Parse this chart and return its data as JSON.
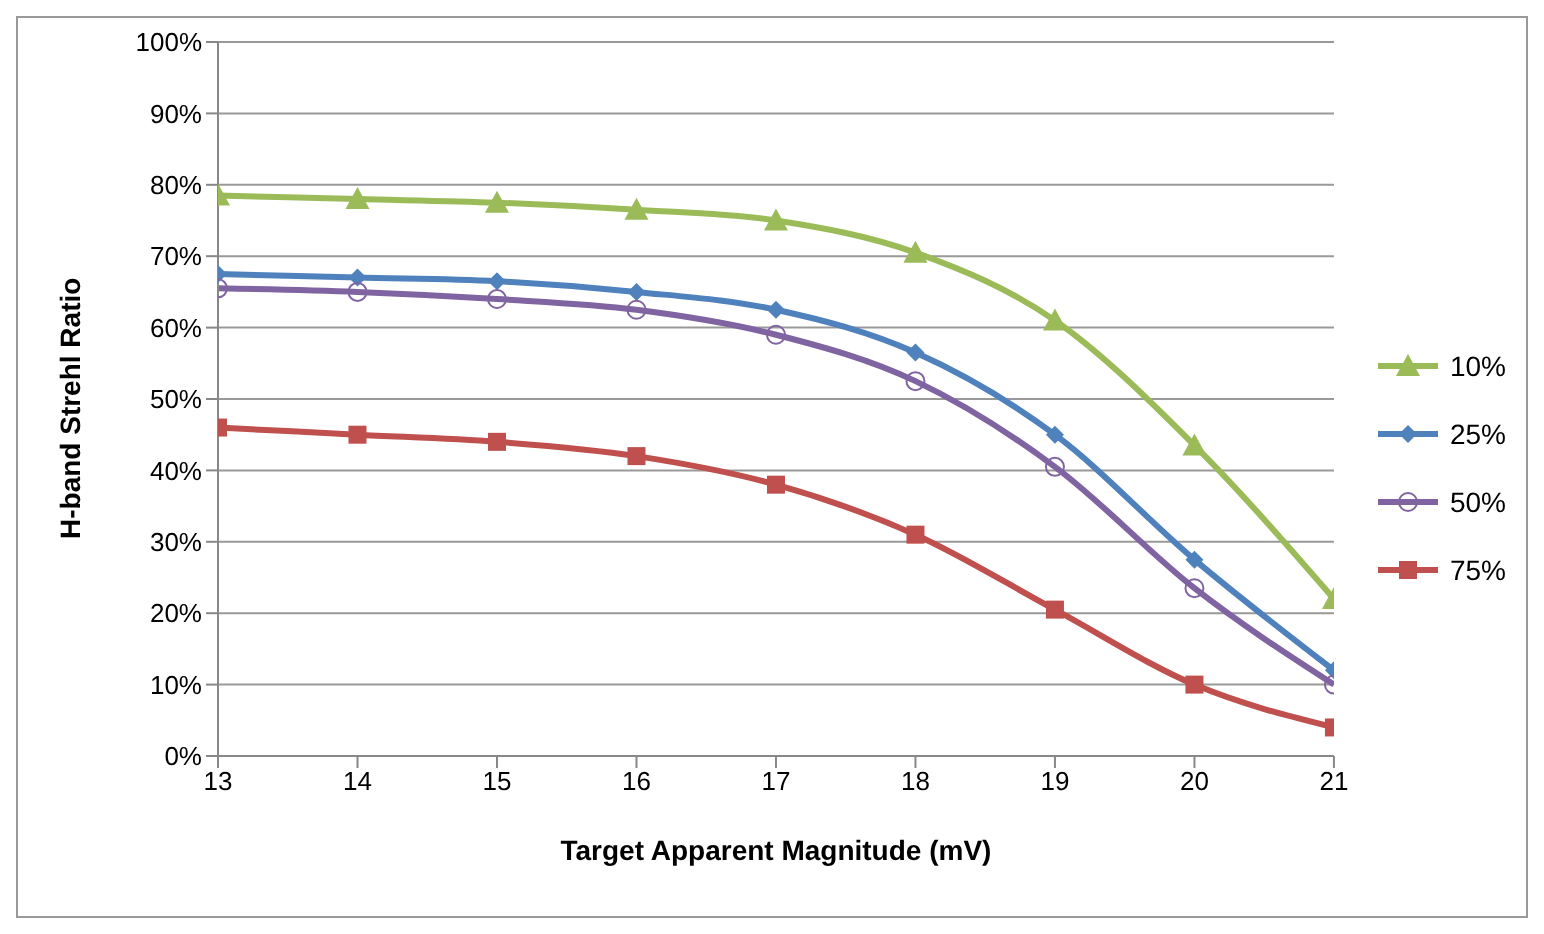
{
  "chart_data": {
    "type": "line",
    "xlabel": "Target Apparent Magnitude (mV)",
    "ylabel": "H-band Strehl Ratio",
    "x": [
      13,
      14,
      15,
      16,
      17,
      18,
      19,
      20,
      21
    ],
    "xlim": [
      13,
      21
    ],
    "xticks": [
      13,
      14,
      15,
      16,
      17,
      18,
      19,
      20,
      21
    ],
    "ylim": [
      0,
      100
    ],
    "yticks": [
      {
        "value": 0,
        "label": "0%"
      },
      {
        "value": 10,
        "label": "10%"
      },
      {
        "value": 20,
        "label": "20%"
      },
      {
        "value": 30,
        "label": "30%"
      },
      {
        "value": 40,
        "label": "40%"
      },
      {
        "value": 50,
        "label": "50%"
      },
      {
        "value": 60,
        "label": "60%"
      },
      {
        "value": 70,
        "label": "70%"
      },
      {
        "value": 80,
        "label": "80%"
      },
      {
        "value": 90,
        "label": "90%"
      },
      {
        "value": 100,
        "label": "100%"
      }
    ],
    "grid": "y",
    "legend": "right",
    "series": [
      {
        "name": "10%",
        "color": "#9bbb59",
        "marker": "triangle",
        "values": [
          78.5,
          78,
          77.5,
          76.5,
          75,
          70.5,
          61,
          43.5,
          22
        ]
      },
      {
        "name": "25%",
        "color": "#4f81bd",
        "marker": "diamond",
        "values": [
          67.5,
          67,
          66.5,
          65,
          62.5,
          56.5,
          45,
          27.5,
          12
        ]
      },
      {
        "name": "50%",
        "color": "#8064a2",
        "marker": "circle",
        "values": [
          65.5,
          65,
          64,
          62.5,
          59,
          52.5,
          40.5,
          23.5,
          10
        ]
      },
      {
        "name": "75%",
        "color": "#c0504d",
        "marker": "square",
        "values": [
          46,
          45,
          44,
          42,
          38,
          31,
          20.5,
          10,
          4
        ]
      }
    ]
  }
}
